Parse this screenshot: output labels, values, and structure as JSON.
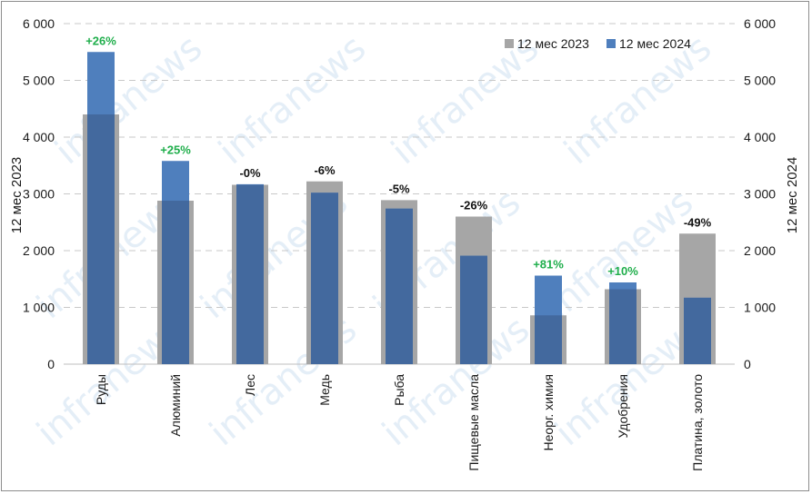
{
  "chart_data": {
    "type": "bar",
    "y_left_label": "12 мес 2023",
    "y_right_label": "12 мес 2024",
    "ylim": [
      0,
      6000
    ],
    "yticks": [
      0,
      1000,
      2000,
      3000,
      4000,
      5000,
      6000
    ],
    "ytick_labels": [
      "0",
      "1 000",
      "2 000",
      "3 000",
      "4 000",
      "5 000",
      "6 000"
    ],
    "categories": [
      "Руды",
      "Алюминий",
      "Лес",
      "Медь",
      "Рыба",
      "Пищевые масла",
      "Неорг. химия",
      "Удобрения",
      "Платина, золото"
    ],
    "series": [
      {
        "name": "12 мес 2023",
        "values": [
          4400,
          2880,
          3160,
          3220,
          2890,
          2600,
          860,
          1320,
          2300
        ],
        "color": "#a6a6a6"
      },
      {
        "name": "12 мес 2024",
        "values": [
          5500,
          3580,
          3170,
          3020,
          2740,
          1910,
          1560,
          1440,
          1170
        ],
        "color": "#4f7fbd"
      }
    ],
    "overlap_color": "#43699e",
    "change_labels": [
      "+26%",
      "+25%",
      "-0%",
      "-6%",
      "-5%",
      "-26%",
      "+81%",
      "+10%",
      "-49%"
    ],
    "positive_color": "#1fae4b",
    "negative_color": "#111111",
    "grid": true,
    "legend_position": "top-right",
    "watermark": "infranews"
  }
}
